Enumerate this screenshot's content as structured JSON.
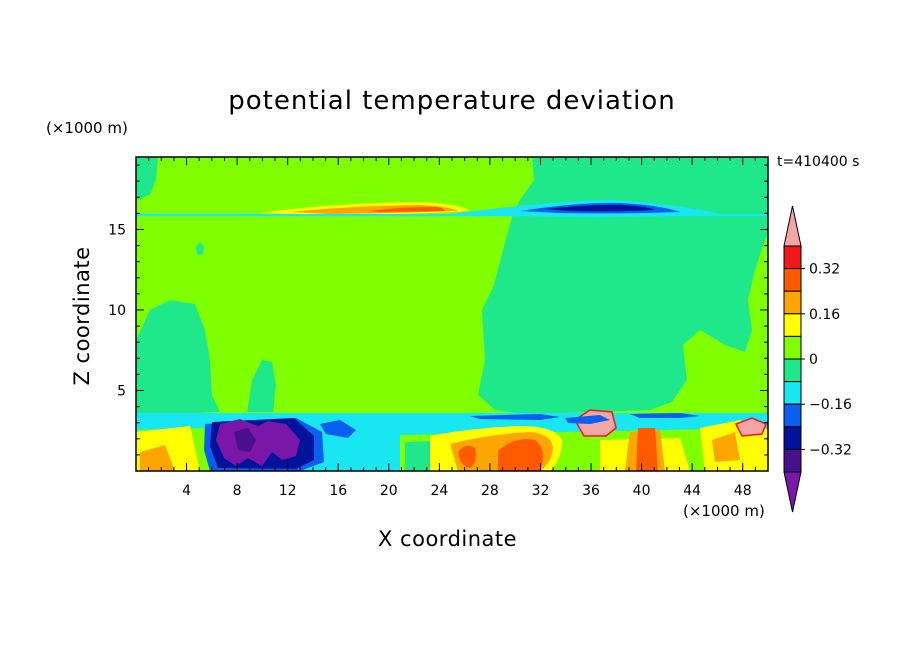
{
  "chart_data": {
    "type": "heatmap",
    "title": "potential temperature deviation",
    "xlabel": "X coordinate",
    "ylabel": "Z coordinate",
    "x_unit": "(×1000 m)",
    "y_unit": "(×1000 m)",
    "time_label": "t=410400 s",
    "xlim": [
      0,
      50
    ],
    "ylim": [
      0,
      19.5
    ],
    "x_ticks": [
      4,
      8,
      12,
      16,
      20,
      24,
      28,
      32,
      36,
      40,
      44,
      48
    ],
    "y_ticks": [
      5,
      10,
      15
    ],
    "colorbar": {
      "levels": [
        -0.4,
        -0.32,
        -0.24,
        -0.16,
        -0.08,
        0,
        0.08,
        0.16,
        0.24,
        0.32,
        0.4
      ],
      "labeled_levels": [
        "0.32",
        "0.16",
        "0",
        "−0.16",
        "−0.32"
      ],
      "labeled_values": [
        0.32,
        0.16,
        0,
        -0.16,
        -0.32
      ],
      "colors": [
        "#7a16a8",
        "#4a0f8a",
        "#00139a",
        "#0a5ff0",
        "#18e6f0",
        "#1fe88a",
        "#7fff00",
        "#ffff00",
        "#ffa500",
        "#ff5a00",
        "#f01818",
        "#f4a6a6"
      ],
      "extend": "both"
    }
  }
}
